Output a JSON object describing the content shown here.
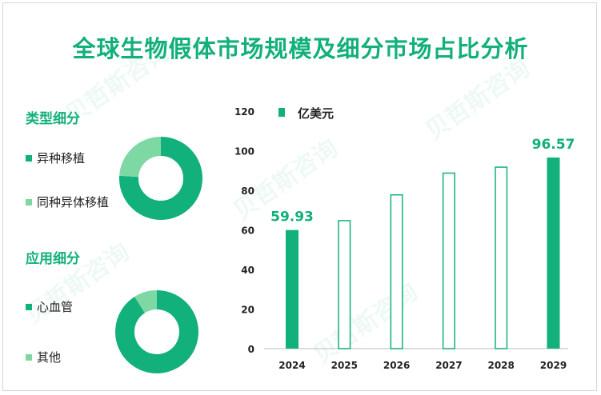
{
  "title": "全球生物假体市场规模及细分市场占比分析",
  "colors": {
    "primary": "#12b07a",
    "light": "#7dd8a4"
  },
  "type_section": {
    "title": "类型细分",
    "items": [
      {
        "label": "异种移植",
        "color": "#12b07a"
      },
      {
        "label": "同种异体移植",
        "color": "#7dd8a4"
      }
    ]
  },
  "application_section": {
    "title": "应用细分",
    "items": [
      {
        "label": "心血管",
        "color": "#12b07a"
      },
      {
        "label": "其他",
        "color": "#7dd8a4"
      }
    ]
  },
  "chart_data": [
    {
      "type": "pie",
      "categories": [
        "异种移植",
        "同种异体移植"
      ],
      "values": [
        76,
        24
      ]
    },
    {
      "type": "pie",
      "categories": [
        "心血管",
        "其他"
      ],
      "values": [
        91,
        9
      ]
    },
    {
      "type": "bar",
      "categories": [
        "2024",
        "2025",
        "2026",
        "2027",
        "2028",
        "2029"
      ],
      "values": [
        59.93,
        65,
        78,
        89,
        92,
        96.57
      ],
      "filled": [
        true,
        false,
        false,
        false,
        false,
        true
      ],
      "data_labels": [
        "59.93",
        "",
        "",
        "",
        "",
        "96.57"
      ],
      "legend": "亿美元",
      "ylim": [
        0,
        120
      ],
      "yticks": [
        0,
        20,
        40,
        60,
        80,
        100,
        120
      ]
    }
  ]
}
